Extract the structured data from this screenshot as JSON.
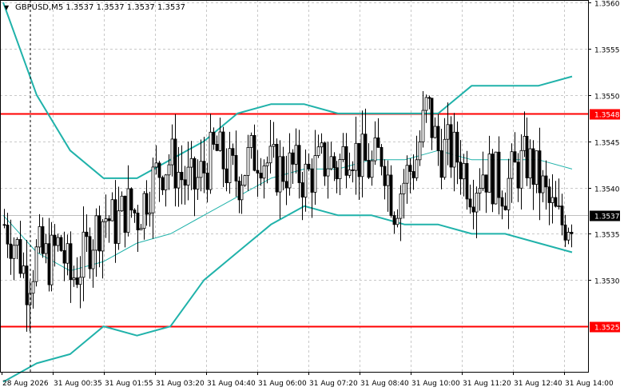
{
  "title": {
    "symbol": "GBPUSD,M5",
    "ohlc": [
      "1.3537",
      "1.3537",
      "1.3537",
      "1.3537"
    ],
    "menu_icon": "triangle-down-icon"
  },
  "price_axis": {
    "min": 1.352,
    "max": 1.356,
    "ticks": [
      "1.3560",
      "1.3555",
      "1.3550",
      "1.3545",
      "1.3540",
      "1.3535",
      "1.3530"
    ],
    "current_price": 1.3537,
    "current_label": "1.3537"
  },
  "time_axis": {
    "labels": [
      "28 Aug 2026",
      "31 Aug 00:35",
      "31 Aug 01:55",
      "31 Aug 03:20",
      "31 Aug 04:40",
      "31 Aug 06:00",
      "31 Aug 07:20",
      "31 Aug 08:40",
      "31 Aug 10:00",
      "31 Aug 11:20",
      "31 Aug 12:40",
      "31 Aug 14:00"
    ]
  },
  "levels": [
    {
      "price": 1.3548,
      "label": "1.3548",
      "color": "#ff0000"
    },
    {
      "price": 1.3525,
      "label": "1.3525",
      "color": "#ff0000"
    }
  ],
  "colors": {
    "background": "#ffffff",
    "grid": "#c8c8c8",
    "candle": "#000000",
    "band": "#20b2aa",
    "current_line": "#c0c0c0",
    "level": "#ff0000"
  },
  "chart_data": {
    "type": "candlestick",
    "symbol": "GBPUSD",
    "timeframe": "M5",
    "ylim": [
      1.352,
      1.356
    ],
    "x_labels": [
      "28 Aug 2026",
      "31 Aug 00:35",
      "31 Aug 01:55",
      "31 Aug 03:20",
      "31 Aug 04:40",
      "31 Aug 06:00",
      "31 Aug 07:20",
      "31 Aug 08:40",
      "31 Aug 10:00",
      "31 Aug 11:20",
      "31 Aug 12:40",
      "31 Aug 14:00"
    ],
    "close_path": [
      1.3536,
      1.3534,
      1.353,
      1.3533,
      1.3532,
      1.3534,
      1.353,
      1.3532,
      1.3535,
      1.3537,
      1.3536,
      1.3538,
      1.3537,
      1.354,
      1.3542,
      1.3543,
      1.3541,
      1.354,
      1.3542,
      1.3544,
      1.3542,
      1.3541,
      1.3543,
      1.3544,
      1.3542,
      1.3542,
      1.3542,
      1.3541,
      1.3542,
      1.3543,
      1.3542,
      1.3545,
      1.3543,
      1.3542,
      1.3544,
      1.3538,
      1.3541,
      1.3543,
      1.3549,
      1.3544,
      1.3544,
      1.3543,
      1.354,
      1.3542,
      1.3541,
      1.354,
      1.3542,
      1.3543,
      1.3541,
      1.3538,
      1.3536,
      1.3537
    ],
    "bollinger_upper": [
      1.356,
      1.355,
      1.3544,
      1.3541,
      1.3541,
      1.3543,
      1.3545,
      1.3548,
      1.3549,
      1.3549,
      1.3548,
      1.3548,
      1.3548,
      1.3548,
      1.3551,
      1.3551,
      1.3551,
      1.3552
    ],
    "bollinger_middle": [
      1.3537,
      1.3533,
      1.3531,
      1.3532,
      1.3534,
      1.3535,
      1.3537,
      1.3539,
      1.3541,
      1.3542,
      1.3542,
      1.3543,
      1.3543,
      1.3544,
      1.3543,
      1.3543,
      1.3543,
      1.3542
    ],
    "bollinger_lower": [
      1.3519,
      1.3521,
      1.3522,
      1.3525,
      1.3524,
      1.3525,
      1.353,
      1.3533,
      1.3536,
      1.3538,
      1.3537,
      1.3537,
      1.3536,
      1.3536,
      1.3535,
      1.3535,
      1.3534,
      1.3533
    ],
    "current_price": 1.3537,
    "horizontal_levels": [
      1.3548,
      1.3525
    ]
  }
}
